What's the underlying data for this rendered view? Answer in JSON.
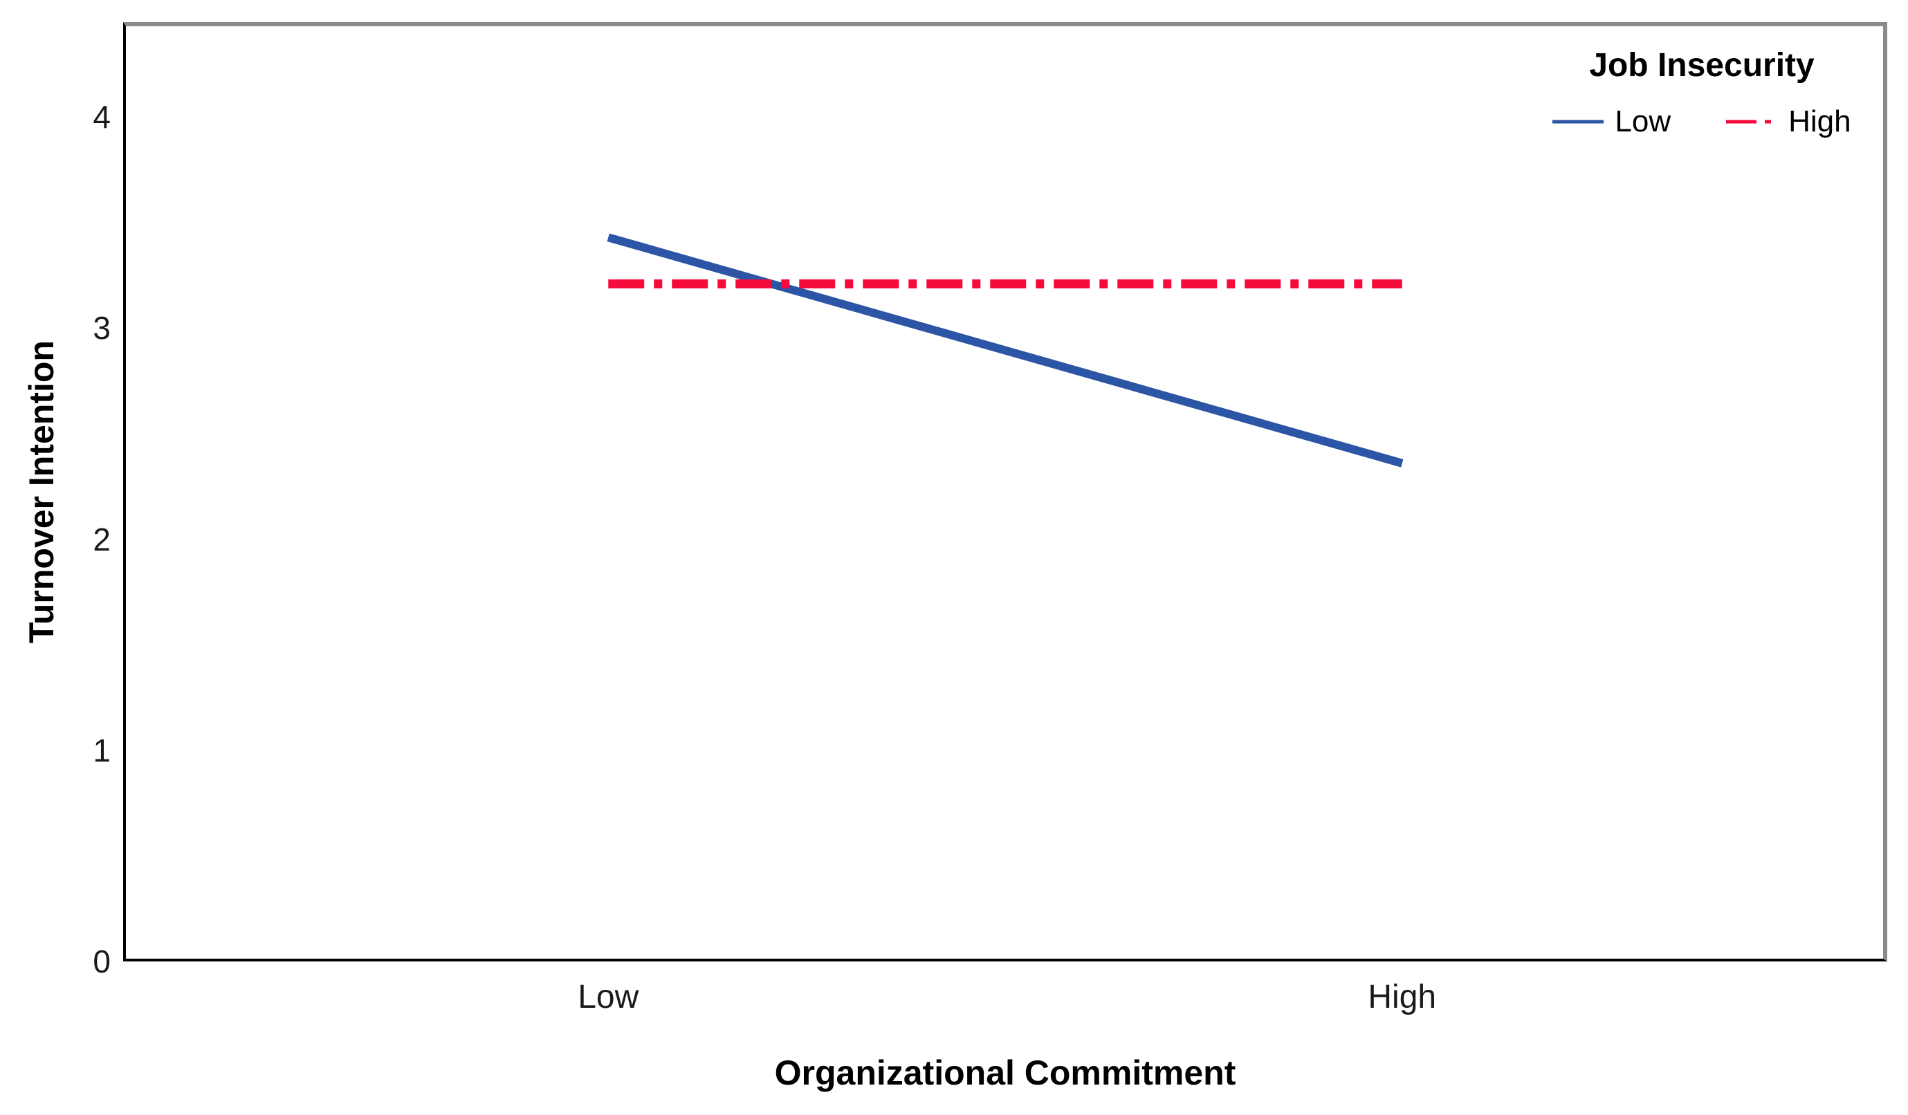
{
  "chart_data": {
    "type": "line",
    "title": "",
    "categories": [
      "Low",
      "High"
    ],
    "series": [
      {
        "name": "Low",
        "values": [
          3.43,
          2.36
        ],
        "color": "#2D55A5",
        "style": "solid"
      },
      {
        "name": "High",
        "values": [
          3.21,
          3.21
        ],
        "color": "#F50A3C",
        "style": "dash-dot"
      }
    ],
    "xlabel": "Organizational Commitment",
    "ylabel": "Turnover Intention",
    "yticks": [
      0,
      1,
      2,
      3,
      4
    ],
    "ylim": [
      0,
      4.45
    ],
    "grid": false,
    "legend": {
      "title": "Job Insecurity",
      "position": "top-right"
    },
    "layout": {
      "frame_color": "#8A8A8A",
      "axis_color": "#000000"
    }
  }
}
